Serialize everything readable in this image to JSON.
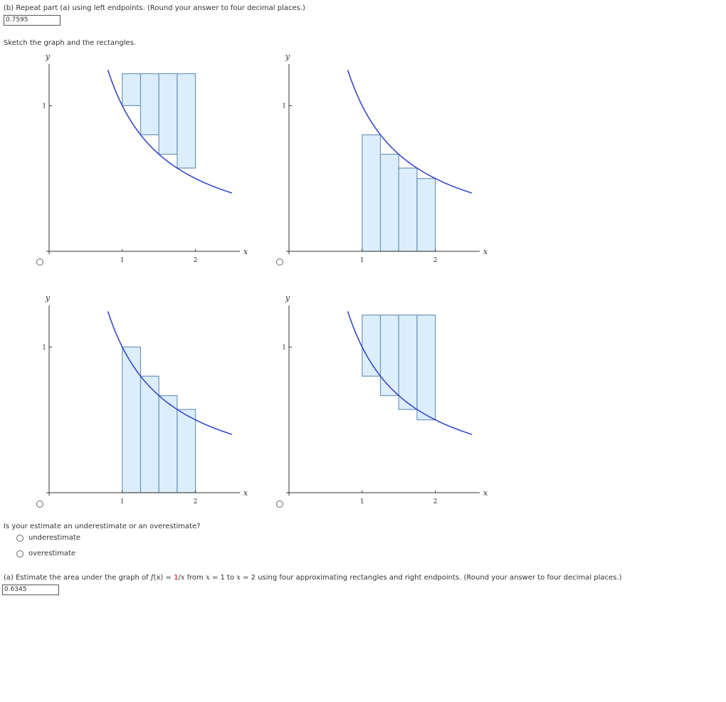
{
  "part_b": {
    "question": "(b) Repeat part (a) using left endpoints. (Round your answer to four decimal places.)",
    "answer": "0.7595"
  },
  "sketch": {
    "prompt": "Sketch the graph and the rectangles.",
    "graphs": [
      {
        "id": "a",
        "mode": "left-overhang",
        "y_label": "y",
        "x_label": "x",
        "tick_x1": "1",
        "tick_x2": "2",
        "tick_y1": "1"
      },
      {
        "id": "b",
        "mode": "right-inscribed",
        "y_label": "y",
        "x_label": "x",
        "tick_x1": "1",
        "tick_x2": "2",
        "tick_y1": "1"
      },
      {
        "id": "c",
        "mode": "left-circumscribed",
        "y_label": "y",
        "x_label": "x",
        "tick_x1": "1",
        "tick_x2": "2",
        "tick_y1": "1"
      },
      {
        "id": "d",
        "mode": "right-overhang",
        "y_label": "y",
        "x_label": "x",
        "tick_x1": "1",
        "tick_x2": "2",
        "tick_y1": "1"
      }
    ]
  },
  "estimate": {
    "question": "Is your estimate an underestimate or an overestimate?",
    "options": [
      "underestimate",
      "overestimate"
    ]
  },
  "part_a": {
    "prefix": "(a) Estimate the area under the graph of",
    "f_name": "f",
    "f_arg": "(x)",
    "equals": "=",
    "f_num": "1",
    "f_slash": "/",
    "f_den": "x",
    "from_word": "from",
    "x_var1": "x",
    "eq1": "= 1",
    "to_word": "to",
    "x_var2": "x",
    "eq2": "= 2",
    "suffix": "using four approximating rectangles and right endpoints. (Round your answer to four decimal places.)",
    "answer": "0.6345"
  },
  "colors": {
    "curve": "#2d3ec9",
    "rect_fill": "#dceefc",
    "rect_stroke": "#6f95bb",
    "axis": "#333333"
  }
}
